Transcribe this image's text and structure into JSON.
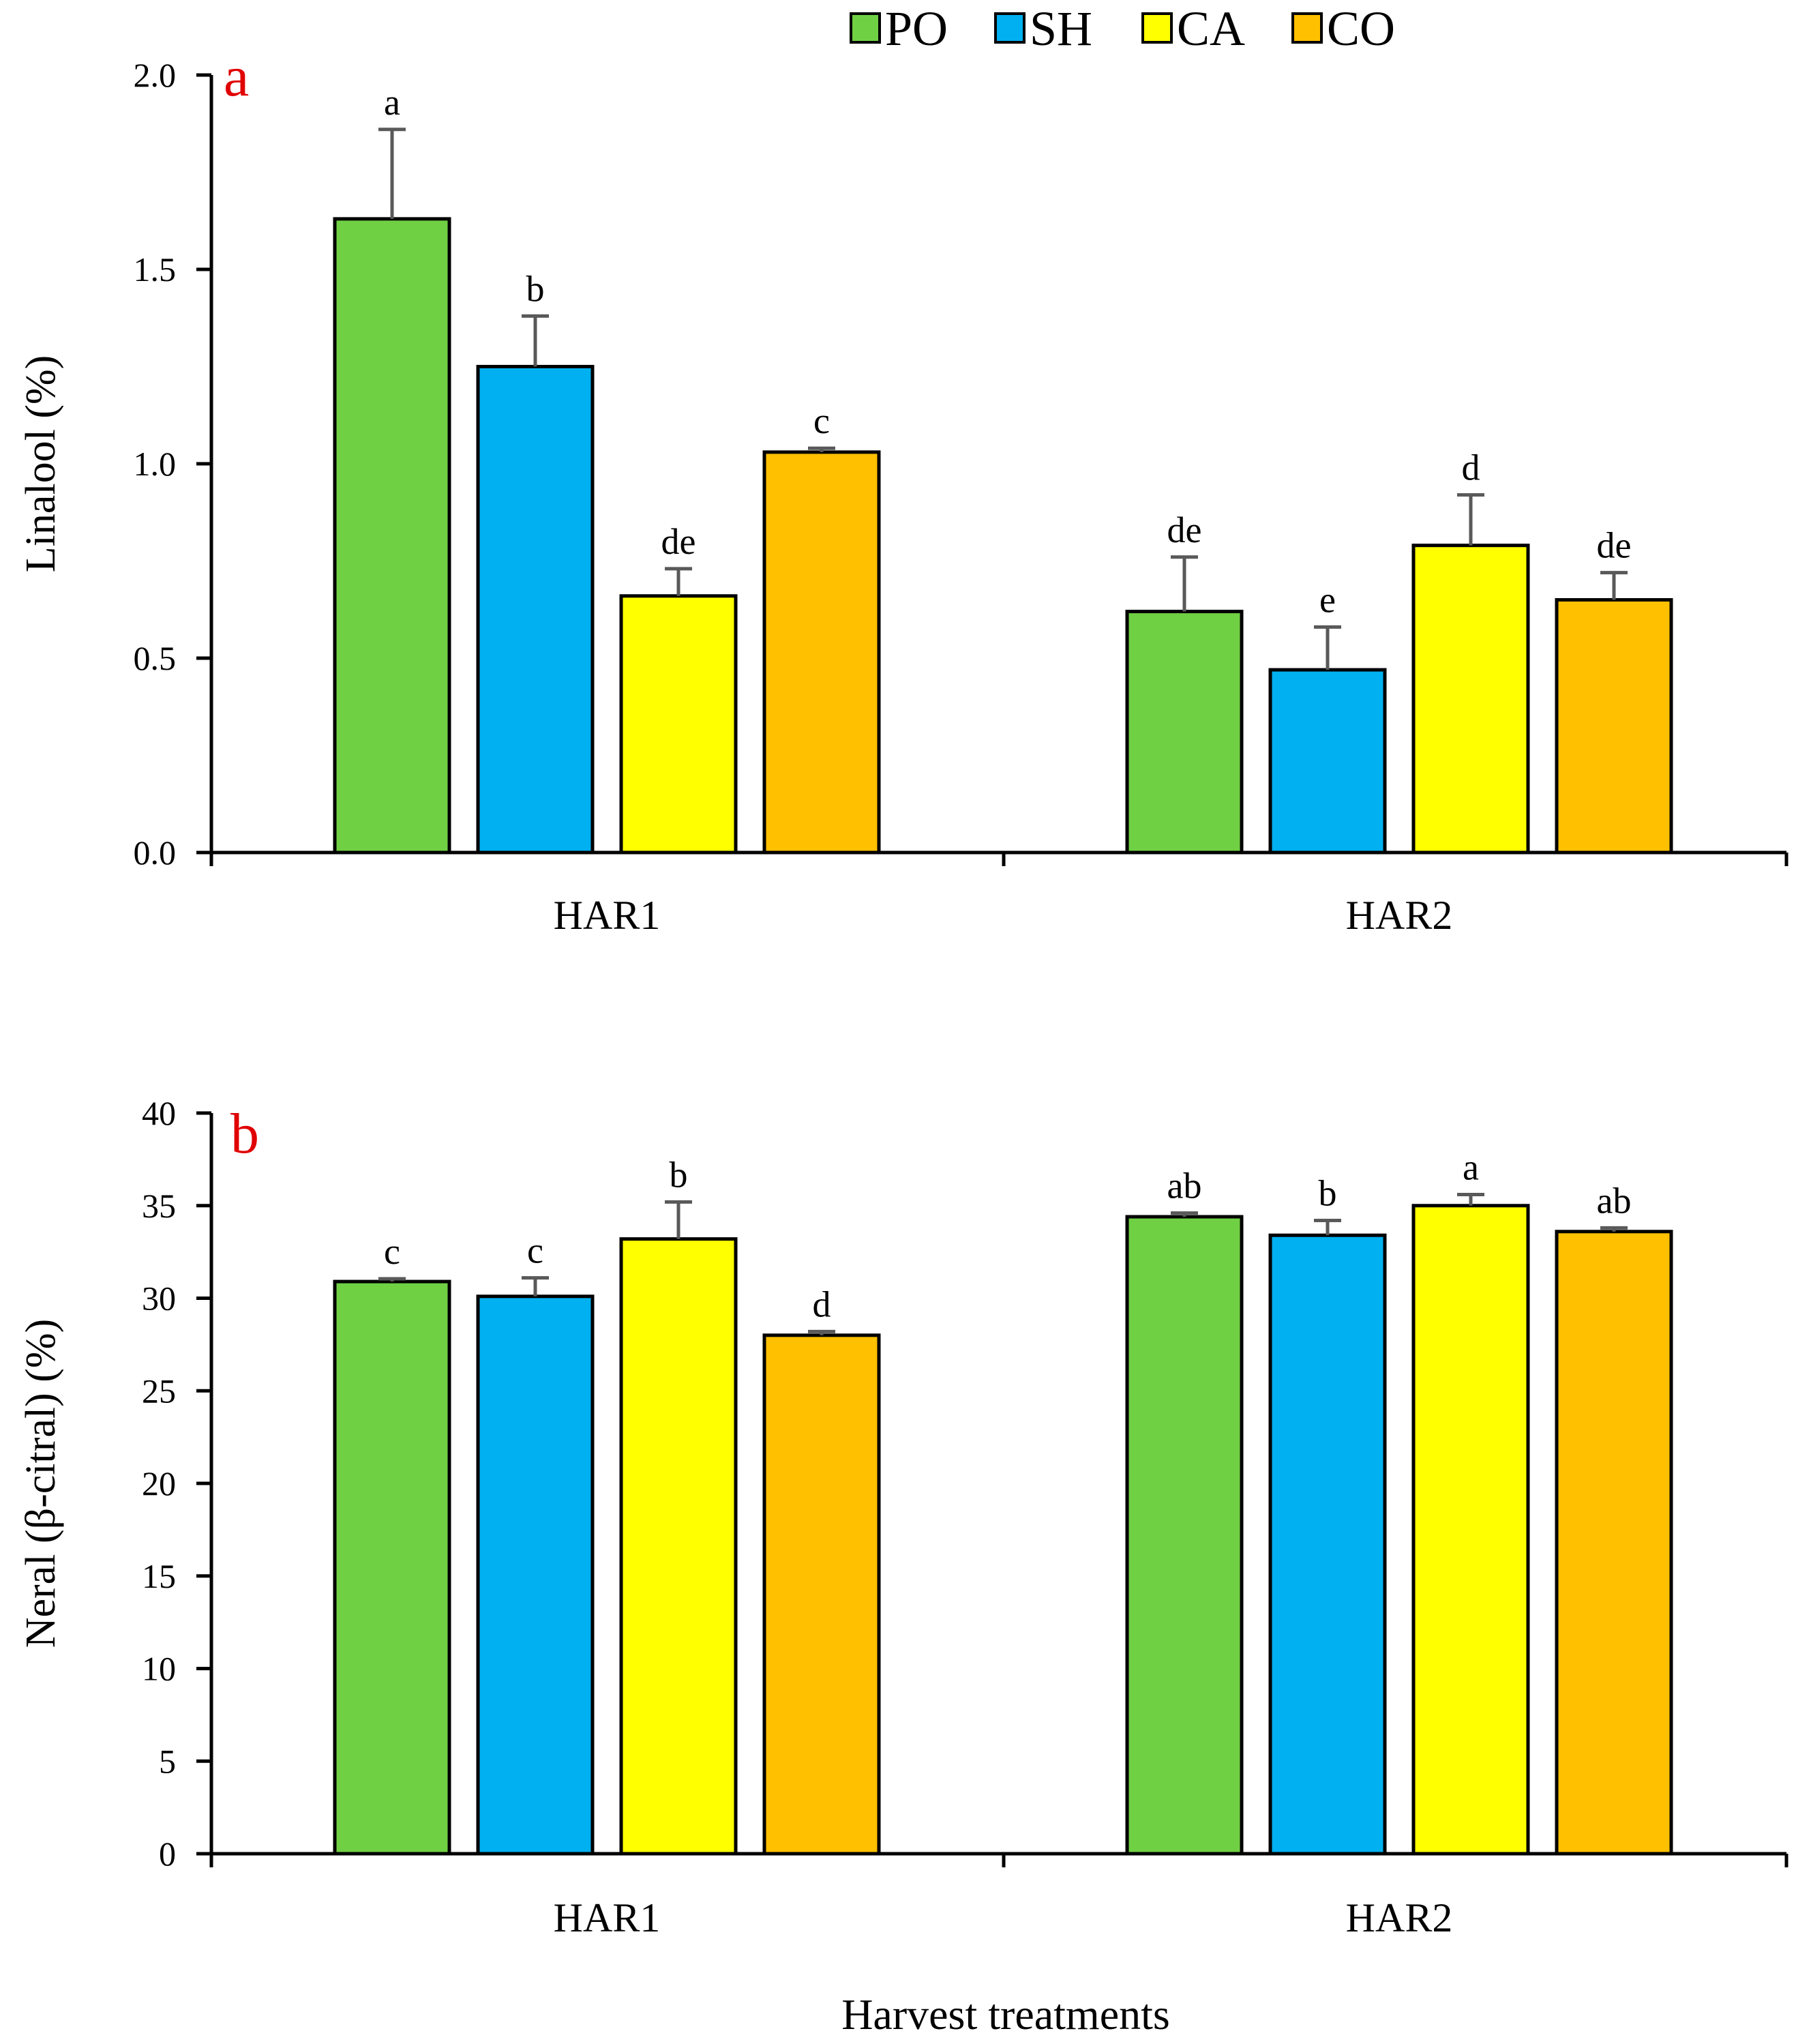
{
  "chart_data": [
    {
      "type": "bar",
      "panel_label": "a",
      "categories": [
        "HAR1",
        "HAR2"
      ],
      "ylabel": "Linalool (%)",
      "ylim": [
        0,
        2.0
      ],
      "yticks": [
        0,
        0.5,
        1.0,
        1.5,
        2.0
      ],
      "ytick_labels": [
        "0.0",
        "0.5",
        "1.0",
        "1.5",
        "2.0"
      ],
      "grid": false,
      "series": [
        {
          "name": "PO",
          "color": "#70d044",
          "values": [
            1.63,
            0.62
          ],
          "errors": [
            0.23,
            0.14
          ],
          "letters": [
            "a",
            "de"
          ]
        },
        {
          "name": "SH",
          "color": "#00b0f0",
          "values": [
            1.25,
            0.47
          ],
          "errors": [
            0.13,
            0.11
          ],
          "letters": [
            "b",
            "e"
          ]
        },
        {
          "name": "CA",
          "color": "#ffff00",
          "values": [
            0.66,
            0.79
          ],
          "errors": [
            0.07,
            0.13
          ],
          "letters": [
            "de",
            "d"
          ]
        },
        {
          "name": "CO",
          "color": "#ffc000",
          "values": [
            1.03,
            0.65
          ],
          "errors": [
            0.01,
            0.07
          ],
          "letters": [
            "c",
            "de"
          ]
        }
      ]
    },
    {
      "type": "bar",
      "panel_label": "b",
      "categories": [
        "HAR1",
        "HAR2"
      ],
      "ylabel": "Neral (β-citral) (%)",
      "ylim": [
        0,
        40
      ],
      "yticks": [
        0,
        5,
        10,
        15,
        20,
        25,
        30,
        35,
        40
      ],
      "ytick_labels": [
        "0",
        "5",
        "10",
        "15",
        "20",
        "25",
        "30",
        "35",
        "40"
      ],
      "grid": false,
      "series": [
        {
          "name": "PO",
          "color": "#70d044",
          "values": [
            30.9,
            34.4
          ],
          "errors": [
            0.15,
            0.2
          ],
          "letters": [
            "c",
            "ab"
          ]
        },
        {
          "name": "SH",
          "color": "#00b0f0",
          "values": [
            30.1,
            33.4
          ],
          "errors": [
            1.0,
            0.8
          ],
          "letters": [
            "c",
            "b"
          ]
        },
        {
          "name": "CA",
          "color": "#ffff00",
          "values": [
            33.2,
            35.0
          ],
          "errors": [
            2.0,
            0.6
          ],
          "letters": [
            "b",
            "a"
          ]
        },
        {
          "name": "CO",
          "color": "#ffc000",
          "values": [
            28.0,
            33.6
          ],
          "errors": [
            0.2,
            0.2
          ],
          "letters": [
            "d",
            "ab"
          ]
        }
      ]
    }
  ],
  "xlabel": "Harvest treatments",
  "legend": {
    "position": "top-center",
    "entries": [
      "PO",
      "SH",
      "CA",
      "CO"
    ]
  }
}
